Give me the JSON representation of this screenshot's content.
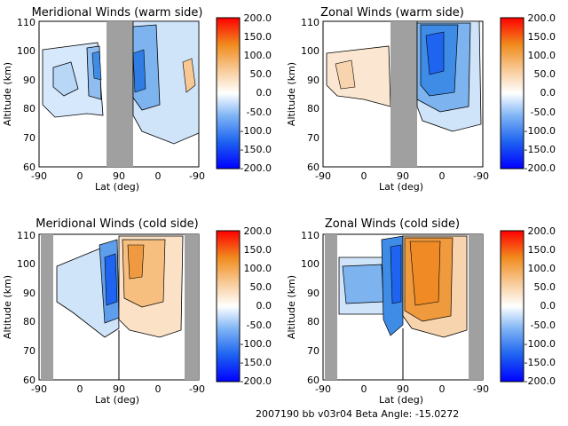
{
  "footer": "2007190 bb v03r04   Beta Angle: -15.0272",
  "colorbar": {
    "ticks": [
      "200.0",
      "150.0",
      "100.0",
      "50.0",
      "0.0",
      "-50.0",
      "-100.0",
      "-150.0",
      "-200.0"
    ],
    "colors": {
      "neg_extreme": "#0000ff",
      "neg": "#1e78e6",
      "zero": "#ffffff",
      "pos": "#f08c1e",
      "pos_extreme": "#ff0000"
    }
  },
  "colors": {
    "data_gap": "#a0a0a0",
    "contour": "#000000"
  },
  "chart_data": [
    {
      "type": "heatmap",
      "title": "Meridional Winds (warm side)",
      "xlabel": "Lat (deg)",
      "ylabel": "Altitude (km)",
      "x_ticks": [
        "-90",
        "0",
        "90",
        "0",
        "-90"
      ],
      "y_ticks": [
        "60",
        "70",
        "80",
        "90",
        "100",
        "110"
      ],
      "ylim": [
        60,
        110
      ],
      "colorbar_range": [
        -200,
        200
      ],
      "data_gap": "between second 90 and -90 side, approx. 60-90 deg span",
      "description_values": {
        "typical_min": -150,
        "typical_max": 50
      }
    },
    {
      "type": "heatmap",
      "title": "Zonal Winds (warm side)",
      "xlabel": "Lat (deg)",
      "ylabel": "Altitude (km)",
      "x_ticks": [
        "-90",
        "0",
        "90",
        "0",
        "-90"
      ],
      "y_ticks": [
        "60",
        "70",
        "80",
        "90",
        "100",
        "110"
      ],
      "ylim": [
        60,
        110
      ],
      "colorbar_range": [
        -200,
        200
      ],
      "description_values": {
        "typical_min": -150,
        "typical_max": 50
      }
    },
    {
      "type": "heatmap",
      "title": "Meridional Winds (cold side)",
      "xlabel": "Lat (deg)",
      "ylabel": "Altitude (km)",
      "x_ticks": [
        "-90",
        "0",
        "90",
        "0",
        "-90"
      ],
      "y_ticks": [
        "60",
        "70",
        "80",
        "90",
        "100",
        "110"
      ],
      "ylim": [
        60,
        110
      ],
      "colorbar_range": [
        -200,
        200
      ],
      "description_values": {
        "typical_min": -150,
        "typical_max": 100
      }
    },
    {
      "type": "heatmap",
      "title": "Zonal Winds (cold side)",
      "xlabel": "Lat (deg)",
      "ylabel": "Altitude (km)",
      "x_ticks": [
        "-90",
        "0",
        "90",
        "0",
        "-90"
      ],
      "y_ticks": [
        "60",
        "70",
        "80",
        "90",
        "100",
        "110"
      ],
      "ylim": [
        60,
        110
      ],
      "colorbar_range": [
        -200,
        200
      ],
      "description_values": {
        "typical_min": -150,
        "typical_max": 150
      }
    }
  ]
}
